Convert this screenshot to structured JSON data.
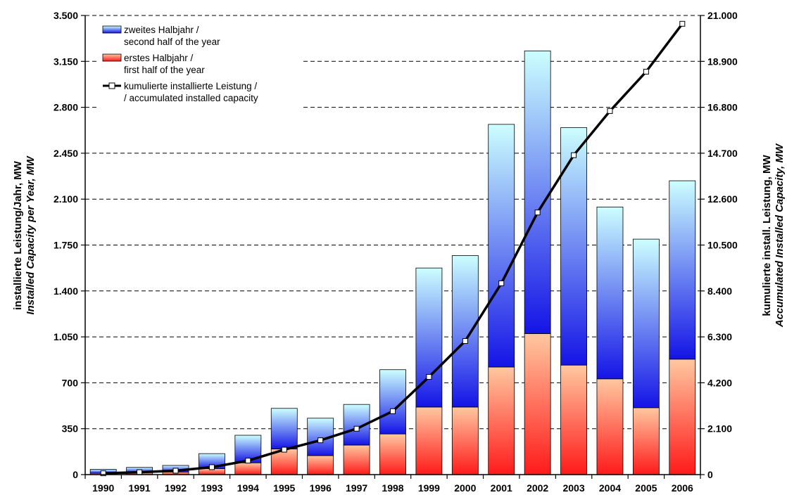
{
  "chart_data": {
    "type": "bar",
    "stacked": true,
    "categories": [
      "1990",
      "1991",
      "1992",
      "1993",
      "1994",
      "1995",
      "1996",
      "1997",
      "1998",
      "1999",
      "2000",
      "2001",
      "2002",
      "2003",
      "2004",
      "2005",
      "2006"
    ],
    "series": [
      {
        "name": "erstes Halbjahr / first half of the year",
        "values": [
          10,
          15,
          20,
          45,
          90,
          195,
          145,
          225,
          310,
          515,
          515,
          820,
          1075,
          835,
          730,
          510,
          880
        ],
        "color_top": "#ffc8a0",
        "color_bottom": "#ff1a1a"
      },
      {
        "name": "zweites Halbjahr / second half of the year",
        "values": [
          30,
          40,
          50,
          115,
          210,
          310,
          285,
          310,
          490,
          1060,
          1155,
          1850,
          2155,
          1810,
          1310,
          1285,
          1360
        ],
        "color_top": "#ccffff",
        "color_bottom": "#1414e6"
      }
    ],
    "line_series": {
      "name": "kumulierte installierte Leistung / accumulated installed capacity",
      "values": [
        60,
        110,
        180,
        340,
        640,
        1140,
        1570,
        2100,
        2900,
        4470,
        6110,
        8750,
        11990,
        14610,
        16630,
        18430,
        20620
      ],
      "color": "#000000"
    },
    "y_left": {
      "label_line1": "installierte Leistung/Jahr, MW",
      "label_line2": "Installed Capacity per Year, MW",
      "range": [
        0,
        3500
      ],
      "ticks": [
        0,
        350,
        700,
        1050,
        1400,
        1750,
        2100,
        2450,
        2800,
        3150,
        3500
      ],
      "tick_labels": [
        "0",
        "350",
        "700",
        "1.050",
        "1.400",
        "1.750",
        "2.100",
        "2.450",
        "2.800",
        "3.150",
        "3.500"
      ]
    },
    "y_right": {
      "label_line1": "kumulierte install. Leistung, MW",
      "label_line2": "Accumulated Installed Capacity, MW",
      "range": [
        0,
        21000
      ],
      "ticks": [
        0,
        2100,
        4200,
        6300,
        8400,
        10500,
        12600,
        14700,
        16800,
        18900,
        21000
      ],
      "tick_labels": [
        "0",
        "2.100",
        "4.200",
        "6.300",
        "8.400",
        "10.500",
        "12.600",
        "14.700",
        "16.800",
        "18.900",
        "21.000"
      ]
    },
    "grid": "horizontal-dashed",
    "legend": {
      "position": "top-left",
      "items": [
        {
          "line1": "zweites Halbjahr /",
          "line2": "second half of the year",
          "kind": "bar-blue"
        },
        {
          "line1": "erstes Halbjahr /",
          "line2": "first half of the year",
          "kind": "bar-red"
        },
        {
          "line1": "kumulierte installierte Leistung /",
          "line2": "/ accumulated installed capacity",
          "kind": "line"
        }
      ]
    }
  }
}
